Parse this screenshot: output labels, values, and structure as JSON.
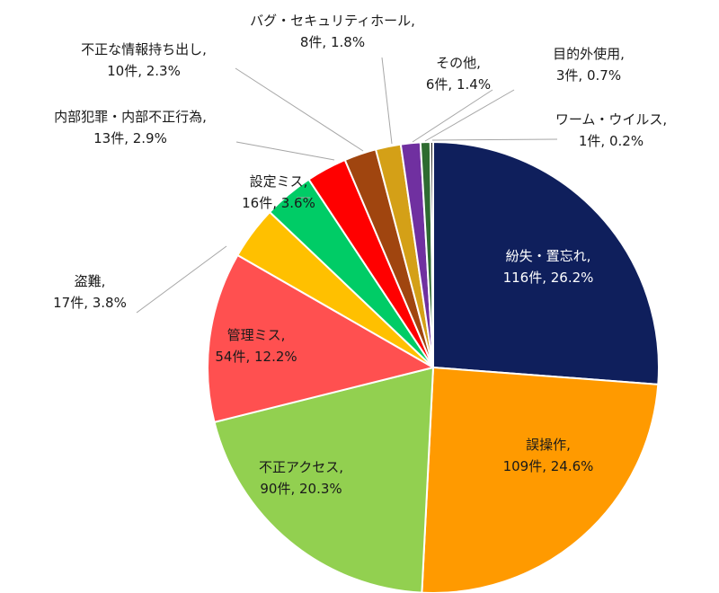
{
  "chart_data": {
    "type": "pie",
    "start_angle_deg": 0,
    "direction": "clockwise",
    "legend": "none",
    "series": [
      {
        "name": "紛失・置忘れ",
        "count_text": "116件",
        "pct_text": "26.2%",
        "value": 26.2,
        "color": "#0f1f5c",
        "label_inside": true,
        "label_color": "light"
      },
      {
        "name": "誤操作",
        "count_text": "109件",
        "pct_text": "24.6%",
        "value": 24.6,
        "color": "#ff9a00",
        "label_inside": true,
        "label_color": "dark"
      },
      {
        "name": "不正アクセス",
        "count_text": "90件",
        "pct_text": "20.3%",
        "value": 20.3,
        "color": "#92d050",
        "label_inside": true,
        "label_color": "dark"
      },
      {
        "name": "管理ミス",
        "count_text": "54件",
        "pct_text": "12.2%",
        "value": 12.2,
        "color": "#ff5050",
        "label_inside": true,
        "label_color": "dark"
      },
      {
        "name": "盗難",
        "count_text": "17件",
        "pct_text": "3.8%",
        "value": 3.8,
        "color": "#ffc000",
        "label_inside": false
      },
      {
        "name": "設定ミス",
        "count_text": "16件",
        "pct_text": "3.6%",
        "value": 3.6,
        "color": "#00cc66",
        "label_inside": false
      },
      {
        "name": "内部犯罪・内部不正行為",
        "count_text": "13件",
        "pct_text": "2.9%",
        "value": 2.9,
        "color": "#ff0000",
        "label_inside": false
      },
      {
        "name": "不正な情報持ち出し",
        "count_text": "10件",
        "pct_text": "2.3%",
        "value": 2.3,
        "color": "#a0450f",
        "label_inside": false
      },
      {
        "name": "バグ・セキュリティホール",
        "count_text": "8件",
        "pct_text": "1.8%",
        "value": 1.8,
        "color": "#d4a017",
        "label_inside": false
      },
      {
        "name": "その他",
        "count_text": "6件",
        "pct_text": "1.4%",
        "value": 1.4,
        "color": "#7030a0",
        "label_inside": false
      },
      {
        "name": "目的外使用",
        "count_text": "3件",
        "pct_text": "0.7%",
        "value": 0.7,
        "color": "#2e6b30",
        "label_inside": false
      },
      {
        "name": "ワーム・ウイルス",
        "count_text": "1件",
        "pct_text": "0.2%",
        "value": 0.2,
        "color": "#222222",
        "label_inside": false
      }
    ]
  }
}
